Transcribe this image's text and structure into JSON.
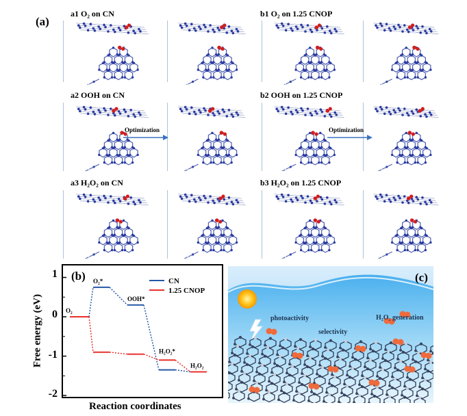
{
  "panel_a_label": "(a)",
  "cells": {
    "a1": "a1 O₂ on CN",
    "a2": "a2 OOH on CN",
    "a3": "a3 H₂O₂ on CN",
    "b1": "b1 O₂ on 1.25 CNOP",
    "b2": "b2 OOH on 1.25 CNOP",
    "b3": "b3 H₂O₂ on 1.25 CNOP"
  },
  "optimization_label": "Optimization",
  "panel_b_label": "(b)",
  "panel_c_label": "(c)",
  "scene_labels": {
    "photoactivity": "photoactivity",
    "selectivity": "selectivity",
    "h2o2_generation": "H₂O₂ generation"
  },
  "colors": {
    "cn": "#2457a6",
    "cnop": "#e8302b",
    "atom_n": "#2a3aa0",
    "atom_o": "#d11f1f",
    "water": "#3a8fd6"
  },
  "chart_data": {
    "type": "line",
    "xlabel": "Reaction coordinates",
    "ylabel": "Free energy (eV)",
    "ylim": [
      -2,
      1.2
    ],
    "yticks": [
      1,
      0,
      -1,
      -2
    ],
    "grid": false,
    "legend_position": "top-right",
    "series": [
      {
        "name": "CN",
        "color": "#2457a6",
        "steps": [
          0.0,
          0.75,
          0.3,
          -1.35,
          -1.4
        ]
      },
      {
        "name": "1.25 CNOP",
        "color": "#e8302b",
        "steps": [
          0.0,
          -0.9,
          -0.95,
          -1.1,
          -1.4
        ]
      }
    ],
    "annotations": [
      {
        "text": "O₂",
        "step": 0,
        "value": 0.0
      },
      {
        "text": "O₂*",
        "step": 1,
        "value": 0.75
      },
      {
        "text": "OOH*",
        "step": 2,
        "value": 0.3
      },
      {
        "text": "H₂O₂*",
        "step": 3,
        "value": -1.1
      },
      {
        "text": "H₂O₂",
        "step": 4,
        "value": -1.4
      }
    ]
  }
}
